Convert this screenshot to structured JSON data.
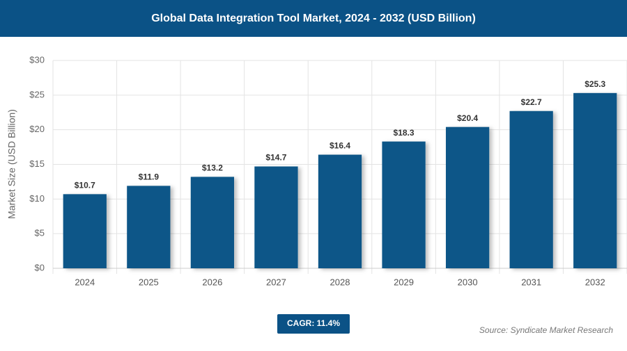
{
  "chart_data": {
    "type": "bar",
    "title": "Global Data Integration Tool Market, 2024 - 2032 (USD Billion)",
    "y_label": "Market Size (USD Billion)",
    "categories": [
      "2024",
      "2025",
      "2026",
      "2027",
      "2028",
      "2029",
      "2030",
      "2031",
      "2032"
    ],
    "values": [
      10.7,
      11.9,
      13.2,
      14.7,
      16.4,
      18.3,
      20.4,
      22.7,
      25.3
    ],
    "value_labels": [
      "$10.7",
      "$11.9",
      "$13.2",
      "$14.7",
      "$16.4",
      "$18.3",
      "$20.4",
      "$22.7",
      "$25.3"
    ],
    "color": "#0d5788",
    "ylim": [
      0,
      30
    ],
    "yticks": [
      {
        "value": 0,
        "label": "$0"
      },
      {
        "value": 5,
        "label": "$5"
      },
      {
        "value": 10,
        "label": "$10"
      },
      {
        "value": 15,
        "label": "$15"
      },
      {
        "value": 20,
        "label": "$20"
      },
      {
        "value": 25,
        "label": "$25"
      },
      {
        "value": 30,
        "label": "$30"
      }
    ],
    "grid": true,
    "cagr_label": "CAGR: 11.4%",
    "source": "Source: Syndicate Market Research"
  }
}
